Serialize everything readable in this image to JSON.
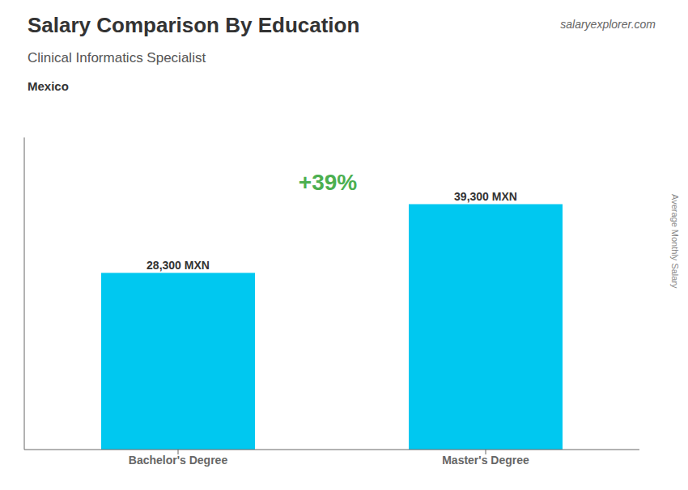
{
  "chart_data": {
    "type": "bar",
    "title": "Salary Comparison By Education",
    "subtitle": "Clinical Informatics Specialist",
    "categories": [
      "Bachelor's Degree",
      "Master's Degree"
    ],
    "values": [
      28300,
      39300
    ],
    "value_labels": [
      "28,300 MXN",
      "39,300 MXN"
    ],
    "color": "#00c8f0",
    "ylim": [
      0,
      50000
    ],
    "data_labels": true,
    "tick_labels": "x",
    "annotations": [
      "Mexico",
      "+39%",
      "salaryexplorer.com",
      "Average Monthly Salary"
    ]
  }
}
